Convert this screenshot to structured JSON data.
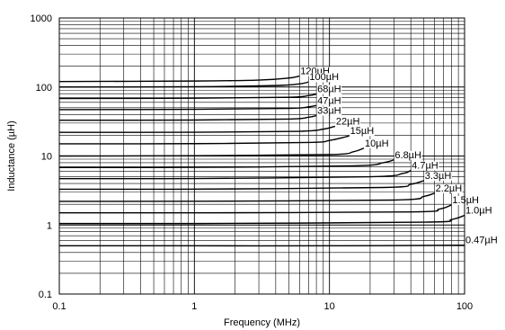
{
  "chart_data": {
    "type": "line",
    "title": "",
    "xlabel": "Frequency (MHz)",
    "ylabel": "Inductance (µH)",
    "xscale": "log",
    "yscale": "log",
    "xlim": [
      0.1,
      100
    ],
    "ylim": [
      0.1,
      1000
    ],
    "grid": true,
    "x_ticks": [
      {
        "value": 0.1,
        "label": "0.1"
      },
      {
        "value": 1,
        "label": "1"
      },
      {
        "value": 10,
        "label": "10"
      },
      {
        "value": 100,
        "label": "100"
      }
    ],
    "y_ticks": [
      {
        "value": 0.1,
        "label": "0.1"
      },
      {
        "value": 1,
        "label": "1"
      },
      {
        "value": 10,
        "label": "10"
      },
      {
        "value": 100,
        "label": "100"
      },
      {
        "value": 1000,
        "label": "1000"
      }
    ],
    "series": [
      {
        "name": "120µH",
        "x": [
          0.1,
          1,
          3,
          5,
          6
        ],
        "y": [
          120,
          122,
          126,
          135,
          144
        ]
      },
      {
        "name": "100µH",
        "x": [
          0.1,
          1,
          4,
          6,
          7
        ],
        "y": [
          100,
          101,
          105,
          111,
          118
        ]
      },
      {
        "name": "68µH",
        "x": [
          0.1,
          1,
          5,
          7,
          8
        ],
        "y": [
          68,
          69,
          71,
          75,
          79
        ]
      },
      {
        "name": "47µH",
        "x": [
          0.1,
          1,
          5,
          7,
          8
        ],
        "y": [
          47,
          47.5,
          49,
          51.5,
          54
        ]
      },
      {
        "name": "33µH",
        "x": [
          0.1,
          1,
          5,
          7,
          8
        ],
        "y": [
          33,
          33.2,
          34.3,
          36.5,
          38.5
        ]
      },
      {
        "name": "22µH",
        "x": [
          0.1,
          1,
          6,
          9,
          11
        ],
        "y": [
          22,
          22.1,
          22.8,
          24.5,
          27
        ]
      },
      {
        "name": "15µH",
        "x": [
          0.1,
          1,
          7,
          10,
          14
        ],
        "y": [
          15,
          15.1,
          15.7,
          16.8,
          19.5
        ]
      },
      {
        "name": "10µH",
        "x": [
          0.1,
          1,
          10,
          15,
          18
        ],
        "y": [
          10,
          10.1,
          10.5,
          11.5,
          13
        ]
      },
      {
        "name": "6.8µH",
        "x": [
          0.1,
          1,
          15,
          25,
          30
        ],
        "y": [
          6.8,
          6.85,
          7.2,
          8.0,
          8.8
        ]
      },
      {
        "name": "4.7µH",
        "x": [
          0.1,
          1,
          20,
          35,
          40
        ],
        "y": [
          4.7,
          4.72,
          5.0,
          5.6,
          6.2
        ]
      },
      {
        "name": "3.3µH",
        "x": [
          0.1,
          1,
          25,
          40,
          50
        ],
        "y": [
          3.3,
          3.31,
          3.5,
          3.9,
          4.4
        ]
      },
      {
        "name": "2.2µH",
        "x": [
          0.1,
          1,
          30,
          50,
          60
        ],
        "y": [
          2.2,
          2.21,
          2.3,
          2.6,
          2.9
        ]
      },
      {
        "name": "1.5µH",
        "x": [
          0.1,
          1,
          40,
          65,
          80
        ],
        "y": [
          1.5,
          1.5,
          1.55,
          1.7,
          1.95
        ]
      },
      {
        "name": "1.0µH",
        "x": [
          0.1,
          1,
          50,
          80,
          100
        ],
        "y": [
          1.05,
          1.05,
          1.1,
          1.2,
          1.38
        ]
      },
      {
        "name": "0.47µH",
        "x": [
          0.1,
          1,
          10,
          100
        ],
        "y": [
          0.5,
          0.5,
          0.5,
          0.51
        ]
      }
    ]
  }
}
